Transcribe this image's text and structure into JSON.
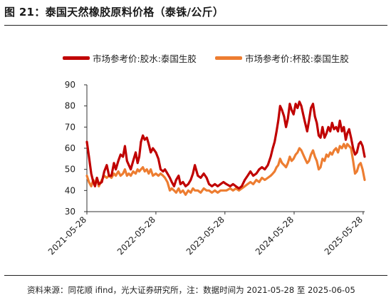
{
  "header": {
    "title": "图 21：泰国天然橡胶原料价格（泰铢/公斤）"
  },
  "footer": {
    "source": "资料来源：同花顺 ifind，光大证券研究所，注：数据时间为 2021-05-28 至 2025-06-05"
  },
  "colors": {
    "series_latex": "#c00000",
    "series_cuplump": "#ed7d31",
    "axis": "#333333"
  },
  "chart_data": {
    "type": "line",
    "title": "",
    "xlabel": "",
    "ylabel": "",
    "ylim": [
      30,
      90
    ],
    "yticks": [
      30,
      40,
      50,
      60,
      70,
      80,
      90
    ],
    "xlim": [
      "2021-05-28",
      "2025-06-05"
    ],
    "xtick_labels": [
      "2021-05-28",
      "2022-05-28",
      "2023-05-28",
      "2024-05-28",
      "2025-05-28"
    ],
    "grid": false,
    "legend": "top",
    "series": [
      {
        "name": "市场参考价:胶水:泰国生胶",
        "color": "#c00000",
        "points": [
          [
            "2021-05-28",
            63
          ],
          [
            "2021-06-08",
            56
          ],
          [
            "2021-06-20",
            48
          ],
          [
            "2021-07-01",
            44
          ],
          [
            "2021-07-10",
            42
          ],
          [
            "2021-07-20",
            46
          ],
          [
            "2021-07-30",
            43
          ],
          [
            "2021-08-15",
            44
          ],
          [
            "2021-08-28",
            49
          ],
          [
            "2021-09-10",
            52
          ],
          [
            "2021-09-22",
            47
          ],
          [
            "2021-10-05",
            47
          ],
          [
            "2021-10-18",
            53
          ],
          [
            "2021-10-28",
            50
          ],
          [
            "2021-11-10",
            54
          ],
          [
            "2021-11-22",
            57
          ],
          [
            "2021-12-05",
            56
          ],
          [
            "2021-12-15",
            61
          ],
          [
            "2021-12-26",
            54
          ],
          [
            "2022-01-05",
            52
          ],
          [
            "2022-01-15",
            50
          ],
          [
            "2022-01-28",
            54
          ],
          [
            "2022-02-10",
            58
          ],
          [
            "2022-02-20",
            53
          ],
          [
            "2022-03-01",
            56
          ],
          [
            "2022-03-10",
            63
          ],
          [
            "2022-03-20",
            66
          ],
          [
            "2022-03-30",
            64
          ],
          [
            "2022-04-10",
            65
          ],
          [
            "2022-04-20",
            62
          ],
          [
            "2022-05-01",
            58
          ],
          [
            "2022-05-12",
            60
          ],
          [
            "2022-05-28",
            58
          ],
          [
            "2022-06-10",
            55
          ],
          [
            "2022-06-22",
            50
          ],
          [
            "2022-07-05",
            49
          ],
          [
            "2022-07-15",
            50
          ],
          [
            "2022-07-28",
            48
          ],
          [
            "2022-08-10",
            46
          ],
          [
            "2022-08-20",
            44
          ],
          [
            "2022-09-01",
            42
          ],
          [
            "2022-09-12",
            45
          ],
          [
            "2022-09-25",
            47
          ],
          [
            "2022-10-05",
            43
          ],
          [
            "2022-10-18",
            44
          ],
          [
            "2022-11-01",
            42
          ],
          [
            "2022-11-15",
            43
          ],
          [
            "2022-11-28",
            45
          ],
          [
            "2022-12-10",
            48
          ],
          [
            "2022-12-20",
            52
          ],
          [
            "2023-01-05",
            47
          ],
          [
            "2023-01-20",
            46
          ],
          [
            "2023-02-05",
            48
          ],
          [
            "2023-02-20",
            46
          ],
          [
            "2023-03-05",
            43
          ],
          [
            "2023-03-20",
            42
          ],
          [
            "2023-04-05",
            43
          ],
          [
            "2023-04-20",
            42
          ],
          [
            "2023-05-05",
            43
          ],
          [
            "2023-05-20",
            44
          ],
          [
            "2023-06-05",
            43
          ],
          [
            "2023-06-25",
            42
          ],
          [
            "2023-07-10",
            43
          ],
          [
            "2023-07-25",
            42
          ],
          [
            "2023-08-10",
            41
          ],
          [
            "2023-08-25",
            42
          ],
          [
            "2023-09-10",
            45
          ],
          [
            "2023-09-25",
            47
          ],
          [
            "2023-10-10",
            49
          ],
          [
            "2023-10-25",
            47
          ],
          [
            "2023-11-10",
            48
          ],
          [
            "2023-11-25",
            50
          ],
          [
            "2023-12-10",
            51
          ],
          [
            "2023-12-25",
            50
          ],
          [
            "2024-01-10",
            52
          ],
          [
            "2024-01-25",
            56
          ],
          [
            "2024-02-05",
            60
          ],
          [
            "2024-02-15",
            63
          ],
          [
            "2024-02-25",
            68
          ],
          [
            "2024-03-05",
            73
          ],
          [
            "2024-03-15",
            80
          ],
          [
            "2024-03-25",
            78
          ],
          [
            "2024-04-05",
            75
          ],
          [
            "2024-04-15",
            70
          ],
          [
            "2024-04-25",
            74
          ],
          [
            "2024-05-05",
            81
          ],
          [
            "2024-05-15",
            78
          ],
          [
            "2024-05-25",
            76
          ],
          [
            "2024-06-05",
            81
          ],
          [
            "2024-06-15",
            79
          ],
          [
            "2024-06-25",
            82
          ],
          [
            "2024-07-05",
            80
          ],
          [
            "2024-07-15",
            76
          ],
          [
            "2024-07-25",
            72
          ],
          [
            "2024-08-05",
            68
          ],
          [
            "2024-08-15",
            73
          ],
          [
            "2024-08-25",
            79
          ],
          [
            "2024-09-05",
            81
          ],
          [
            "2024-09-15",
            75
          ],
          [
            "2024-09-25",
            72
          ],
          [
            "2024-10-05",
            66
          ],
          [
            "2024-10-15",
            65
          ],
          [
            "2024-10-25",
            70
          ],
          [
            "2024-11-05",
            65
          ],
          [
            "2024-11-15",
            67
          ],
          [
            "2024-11-25",
            70
          ],
          [
            "2024-12-05",
            68
          ],
          [
            "2024-12-15",
            72
          ],
          [
            "2024-12-25",
            69
          ],
          [
            "2025-01-05",
            70
          ],
          [
            "2025-01-15",
            68
          ],
          [
            "2025-01-25",
            73
          ],
          [
            "2025-02-05",
            68
          ],
          [
            "2025-02-15",
            70
          ],
          [
            "2025-02-25",
            64
          ],
          [
            "2025-03-05",
            67
          ],
          [
            "2025-03-15",
            69
          ],
          [
            "2025-03-25",
            65
          ],
          [
            "2025-04-05",
            60
          ],
          [
            "2025-04-15",
            57
          ],
          [
            "2025-04-25",
            58
          ],
          [
            "2025-05-05",
            62
          ],
          [
            "2025-05-15",
            63
          ],
          [
            "2025-05-25",
            61
          ],
          [
            "2025-06-05",
            56
          ]
        ]
      },
      {
        "name": "市场参考价:杯胶:泰国生胶",
        "color": "#ed7d31",
        "points": [
          [
            "2021-05-28",
            47
          ],
          [
            "2021-06-08",
            44
          ],
          [
            "2021-06-20",
            42
          ],
          [
            "2021-07-01",
            45
          ],
          [
            "2021-07-10",
            43
          ],
          [
            "2021-07-20",
            46
          ],
          [
            "2021-07-30",
            42
          ],
          [
            "2021-08-15",
            45
          ],
          [
            "2021-08-28",
            47
          ],
          [
            "2021-09-10",
            46
          ],
          [
            "2021-09-22",
            47
          ],
          [
            "2021-10-05",
            46
          ],
          [
            "2021-10-18",
            48
          ],
          [
            "2021-10-28",
            47
          ],
          [
            "2021-11-10",
            49
          ],
          [
            "2021-11-22",
            47
          ],
          [
            "2021-12-05",
            48
          ],
          [
            "2021-12-15",
            50
          ],
          [
            "2021-12-26",
            47
          ],
          [
            "2022-01-05",
            48
          ],
          [
            "2022-01-15",
            47
          ],
          [
            "2022-01-28",
            49
          ],
          [
            "2022-02-10",
            48
          ],
          [
            "2022-02-20",
            50
          ],
          [
            "2022-03-01",
            49
          ],
          [
            "2022-03-10",
            50
          ],
          [
            "2022-03-20",
            51
          ],
          [
            "2022-03-30",
            49
          ],
          [
            "2022-04-10",
            50
          ],
          [
            "2022-04-20",
            48
          ],
          [
            "2022-05-01",
            50
          ],
          [
            "2022-05-12",
            47
          ],
          [
            "2022-05-28",
            48
          ],
          [
            "2022-06-10",
            47
          ],
          [
            "2022-06-22",
            48
          ],
          [
            "2022-07-05",
            47
          ],
          [
            "2022-07-15",
            46
          ],
          [
            "2022-07-28",
            44
          ],
          [
            "2022-08-10",
            40
          ],
          [
            "2022-08-20",
            41
          ],
          [
            "2022-09-01",
            40
          ],
          [
            "2022-09-12",
            39
          ],
          [
            "2022-09-25",
            41
          ],
          [
            "2022-10-05",
            39
          ],
          [
            "2022-10-18",
            40
          ],
          [
            "2022-11-01",
            38
          ],
          [
            "2022-11-15",
            40
          ],
          [
            "2022-11-28",
            39
          ],
          [
            "2022-12-10",
            41
          ],
          [
            "2022-12-20",
            40
          ],
          [
            "2023-01-05",
            40
          ],
          [
            "2023-01-20",
            39
          ],
          [
            "2023-02-05",
            41
          ],
          [
            "2023-02-20",
            40
          ],
          [
            "2023-03-05",
            40
          ],
          [
            "2023-03-20",
            39
          ],
          [
            "2023-04-05",
            40
          ],
          [
            "2023-04-20",
            39
          ],
          [
            "2023-05-05",
            40
          ],
          [
            "2023-05-20",
            40
          ],
          [
            "2023-06-05",
            40
          ],
          [
            "2023-06-25",
            41
          ],
          [
            "2023-07-10",
            40
          ],
          [
            "2023-07-25",
            41
          ],
          [
            "2023-08-10",
            40
          ],
          [
            "2023-08-25",
            41
          ],
          [
            "2023-09-10",
            42
          ],
          [
            "2023-09-25",
            43
          ],
          [
            "2023-10-10",
            44
          ],
          [
            "2023-10-25",
            43
          ],
          [
            "2023-11-10",
            45
          ],
          [
            "2023-11-25",
            44
          ],
          [
            "2023-12-10",
            46
          ],
          [
            "2023-12-25",
            45
          ],
          [
            "2024-01-10",
            46
          ],
          [
            "2024-01-25",
            47
          ],
          [
            "2024-02-05",
            48
          ],
          [
            "2024-02-15",
            49
          ],
          [
            "2024-02-25",
            51
          ],
          [
            "2024-03-05",
            52
          ],
          [
            "2024-03-15",
            55
          ],
          [
            "2024-03-25",
            53
          ],
          [
            "2024-04-05",
            52
          ],
          [
            "2024-04-15",
            51
          ],
          [
            "2024-04-25",
            53
          ],
          [
            "2024-05-05",
            56
          ],
          [
            "2024-05-15",
            54
          ],
          [
            "2024-05-25",
            55
          ],
          [
            "2024-06-05",
            57
          ],
          [
            "2024-06-15",
            58
          ],
          [
            "2024-06-25",
            60
          ],
          [
            "2024-07-05",
            59
          ],
          [
            "2024-07-15",
            57
          ],
          [
            "2024-07-25",
            55
          ],
          [
            "2024-08-05",
            53
          ],
          [
            "2024-08-15",
            54
          ],
          [
            "2024-08-25",
            57
          ],
          [
            "2024-09-05",
            59
          ],
          [
            "2024-09-15",
            56
          ],
          [
            "2024-09-25",
            54
          ],
          [
            "2024-10-05",
            50
          ],
          [
            "2024-10-15",
            51
          ],
          [
            "2024-10-25",
            55
          ],
          [
            "2024-11-05",
            54
          ],
          [
            "2024-11-15",
            57
          ],
          [
            "2024-11-25",
            56
          ],
          [
            "2024-12-05",
            58
          ],
          [
            "2024-12-15",
            57
          ],
          [
            "2024-12-25",
            59
          ],
          [
            "2025-01-05",
            60
          ],
          [
            "2025-01-15",
            58
          ],
          [
            "2025-01-25",
            61
          ],
          [
            "2025-02-05",
            60
          ],
          [
            "2025-02-15",
            62
          ],
          [
            "2025-02-25",
            60
          ],
          [
            "2025-03-05",
            62
          ],
          [
            "2025-03-15",
            61
          ],
          [
            "2025-03-25",
            60
          ],
          [
            "2025-04-05",
            54
          ],
          [
            "2025-04-15",
            48
          ],
          [
            "2025-04-25",
            49
          ],
          [
            "2025-05-05",
            52
          ],
          [
            "2025-05-15",
            53
          ],
          [
            "2025-05-25",
            50
          ],
          [
            "2025-06-05",
            45
          ]
        ]
      }
    ]
  }
}
